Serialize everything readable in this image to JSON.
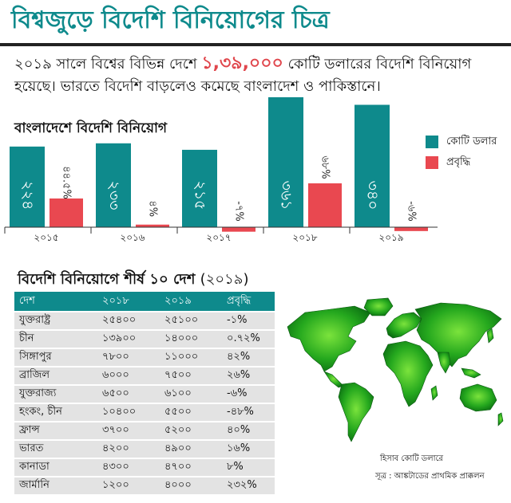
{
  "title": "বিশ্বজুড়ে বিদেশি বিনিয়োগের চিত্র",
  "intro": {
    "before": "২০১৯ সালে বিশ্বের বিভিন্ন দেশে ",
    "highlight": "১,৩৯,০০০",
    "after": " কোটি ডলারের বিদেশি বিনিয়োগ হয়েছে। ভারতে বিদেশি বাড়লেও কমেছে বাংলাদেশ ও পাকিস্তানে।"
  },
  "colors": {
    "teal": "#0e8a8c",
    "red": "#e94850",
    "map_green": "#1f9a1f"
  },
  "chart_data": {
    "type": "bar",
    "title": "বাংলাদেশে বিদেশি বিনিয়োগ",
    "categories": [
      "2015",
      "2016",
      "2017",
      "2018",
      "2019"
    ],
    "category_labels": [
      "২০১৫",
      "২০১৬",
      "২০১৭",
      "২০১৮",
      "২০১৯"
    ],
    "series": [
      {
        "name": "কোটি ডলার",
        "values": [
          224,
          233,
          215,
          361,
          340
        ],
        "labels": [
          "২২৪",
          "২৩৩",
          "২১৫",
          "৩৬১",
          "৩৪০"
        ],
        "color": "#0e8a8c"
      },
      {
        "name": "প্রবৃদ্ধি",
        "values": [
          44.5,
          4,
          -7,
          68,
          -6
        ],
        "labels": [
          "৪৪.৫%",
          "৪%",
          "-৭%",
          "৬৮%",
          "-৬%"
        ],
        "color": "#e94850"
      }
    ],
    "legend_position": "right",
    "grid": false
  },
  "table": {
    "title": "বিদেশি বিনিয়োগে শীর্ষ ১০ দেশ",
    "year": "(২০১৯)",
    "headers": [
      "দেশ",
      "২০১৮",
      "২০১৯",
      "প্রবৃদ্ধি"
    ],
    "rows": [
      [
        "যুক্তরাষ্ট্র",
        "২৫৪০০",
        "২৫১০০",
        "-১%"
      ],
      [
        "চীন",
        "১৩৯০০",
        "১৪০০০",
        "০.৭২%"
      ],
      [
        "সিঙ্গাপুর",
        "৭৮০০",
        "১১০০০",
        "৪২%"
      ],
      [
        "ব্রাজিল",
        "৬০০০",
        "৭৫০০",
        "২৬%"
      ],
      [
        "যুক্তরাজ্য",
        "৬৫০০",
        "৬১০০",
        "-৬%"
      ],
      [
        "হংকং, চীন",
        "১০৪০০",
        "৫৫০০",
        "-৪৮%"
      ],
      [
        "ফ্রান্স",
        "৩৭০০",
        "৫২০০",
        "৪০%"
      ],
      [
        "ভারত",
        "৪২০০",
        "৪৯০০",
        "১৬%"
      ],
      [
        "কানাডা",
        "৪৩০০",
        "৪৭০০",
        "৮%"
      ],
      [
        "জার্মানি",
        "১২০০",
        "৪০০০",
        "২৩২%"
      ]
    ]
  },
  "note": "হিসাব কোটি ডলারে",
  "source": "সূত্র : আঙ্কটাডের প্রাথমিক প্রাক্কলন",
  "map": {
    "icon": "world-map-icon"
  }
}
